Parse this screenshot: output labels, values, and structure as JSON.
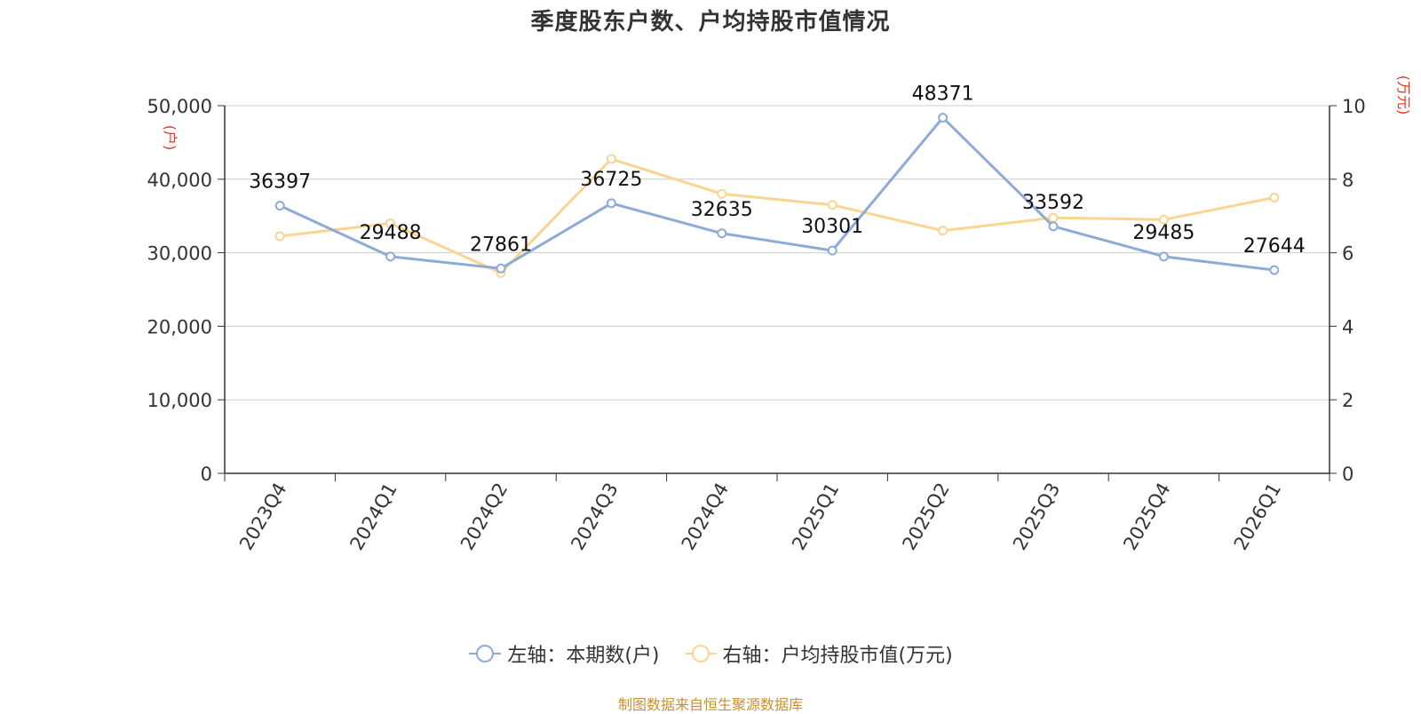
{
  "chart_data": {
    "type": "line",
    "title": "季度股东户数、户均持股市值情况",
    "categories": [
      "2023Q4",
      "2024Q1",
      "2024Q2",
      "2024Q3",
      "2024Q4",
      "2025Q1",
      "2025Q2",
      "2025Q3",
      "2025Q4",
      "2026Q1"
    ],
    "left_axis": {
      "unit_label": "(户)",
      "range": [
        0,
        50000
      ],
      "ticks": [
        "0",
        "10,000",
        "20,000",
        "30,000",
        "40,000",
        "50,000"
      ],
      "tick_values": [
        0,
        10000,
        20000,
        30000,
        40000,
        50000
      ]
    },
    "right_axis": {
      "unit_label": "(万元)",
      "range": [
        0,
        10
      ],
      "ticks": [
        "0",
        "2",
        "4",
        "6",
        "8",
        "10"
      ],
      "tick_values": [
        0,
        2,
        4,
        6,
        8,
        10
      ]
    },
    "series": [
      {
        "name": "左轴：本期数(户)",
        "axis": "left",
        "color": "#8eabd8",
        "values": [
          36397,
          29488,
          27861,
          36725,
          32635,
          30301,
          48371,
          33592,
          29485,
          27644
        ],
        "labels": [
          "36397",
          "29488",
          "27861",
          "36725",
          "32635",
          "30301",
          "48371",
          "33592",
          "29485",
          "27644"
        ]
      },
      {
        "name": "右轴：户均持股市值(万元)",
        "axis": "right",
        "color": "#fad592",
        "values": [
          6.45,
          6.8,
          5.45,
          8.55,
          7.6,
          7.3,
          6.6,
          6.95,
          6.9,
          7.5
        ]
      }
    ],
    "grid": true,
    "legend_position": "bottom"
  },
  "source": "制图数据来自恒生聚源数据库"
}
